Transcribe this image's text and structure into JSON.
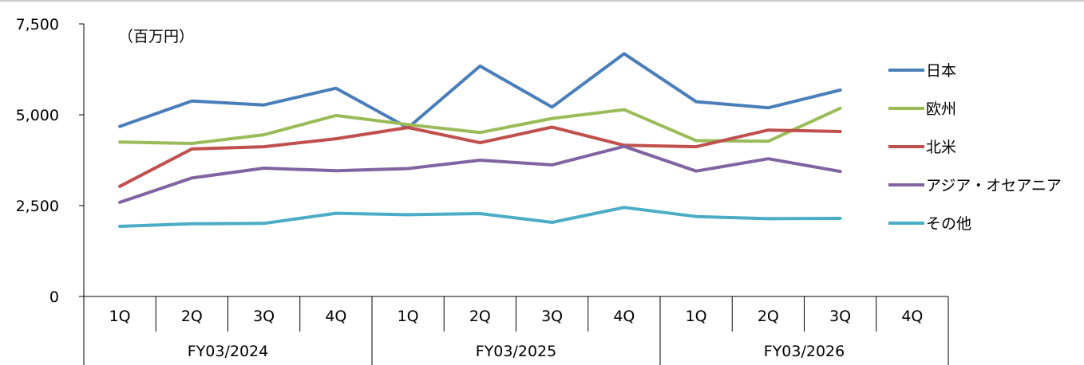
{
  "chart_data": {
    "type": "line",
    "unit_label": "（百万円）",
    "ylim": [
      0,
      7500
    ],
    "yticks": [
      0,
      2500,
      5000,
      7500
    ],
    "ytick_labels": [
      "0",
      "2,500",
      "5,000",
      "7,500"
    ],
    "categories": [
      "1Q",
      "2Q",
      "3Q",
      "4Q",
      "1Q",
      "2Q",
      "3Q",
      "4Q",
      "1Q",
      "2Q",
      "3Q",
      "4Q"
    ],
    "groups": [
      {
        "label": "FY03/2024",
        "count": 4
      },
      {
        "label": "FY03/2025",
        "count": 4
      },
      {
        "label": "FY03/2026",
        "count": 4
      }
    ],
    "grid": false,
    "legend_position": "right",
    "series": [
      {
        "name": "日本",
        "color": "#4a7ebb",
        "values": [
          4680,
          5380,
          5270,
          5730,
          4640,
          6340,
          5210,
          6680,
          5360,
          5190,
          5680,
          null
        ]
      },
      {
        "name": "欧州",
        "color": "#9bbb59",
        "values": [
          4250,
          4210,
          4450,
          4980,
          4730,
          4510,
          4900,
          5140,
          4290,
          4270,
          5180,
          null
        ]
      },
      {
        "name": "北米",
        "color": "#c0504d",
        "values": [
          3030,
          4060,
          4120,
          4340,
          4650,
          4230,
          4660,
          4160,
          4120,
          4580,
          4540,
          null
        ]
      },
      {
        "name": "アジア・オセアニア",
        "color": "#8064a2",
        "values": [
          2590,
          3260,
          3530,
          3460,
          3520,
          3750,
          3620,
          4130,
          3450,
          3790,
          3440,
          null
        ]
      },
      {
        "name": "その他",
        "color": "#4bacc6",
        "values": [
          1930,
          2000,
          2010,
          2290,
          2250,
          2280,
          2040,
          2450,
          2200,
          2140,
          2150,
          null
        ]
      }
    ]
  }
}
